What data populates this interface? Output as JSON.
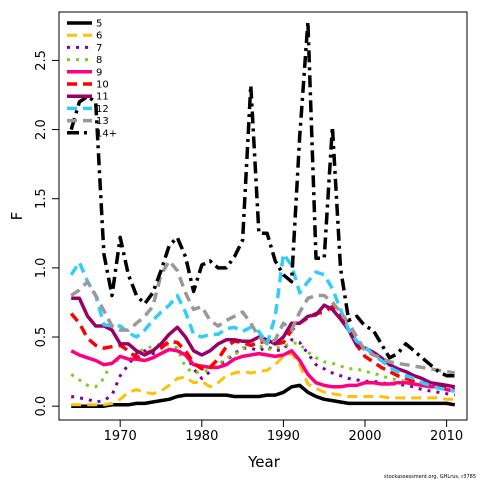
{
  "chart_data": {
    "type": "line",
    "title": "",
    "xlabel": "Year",
    "ylabel": "F",
    "xlim": [
      1962.5,
      2012.5
    ],
    "ylim": [
      -0.1,
      2.85
    ],
    "x_ticks": [
      1970,
      1980,
      1990,
      2000,
      2010
    ],
    "x_tick_labels": [
      "1970",
      "1980",
      "1990",
      "2000",
      "2010"
    ],
    "y_ticks": [
      0.0,
      0.5,
      1.0,
      1.5,
      2.0,
      2.5
    ],
    "y_tick_labels": [
      "0.0",
      "0.5",
      "1.0",
      "1.5",
      "2.0",
      "2.5"
    ],
    "grid": false,
    "legend_position": "top-left",
    "footer": "stockassessment.org, GHLrus, r3785",
    "x": [
      1964,
      1965,
      1966,
      1967,
      1968,
      1969,
      1970,
      1971,
      1972,
      1973,
      1974,
      1975,
      1976,
      1977,
      1978,
      1979,
      1980,
      1981,
      1982,
      1983,
      1984,
      1985,
      1986,
      1987,
      1988,
      1989,
      1990,
      1991,
      1992,
      1993,
      1994,
      1995,
      1996,
      1997,
      1998,
      1999,
      2000,
      2001,
      2002,
      2003,
      2004,
      2005,
      2006,
      2007,
      2008,
      2009,
      2010,
      2011
    ],
    "series": [
      {
        "name": "5",
        "color": "#000000",
        "dash": "solid",
        "width": 3.5,
        "values": [
          0.0,
          0.0,
          0.0,
          0.0,
          0.0,
          0.01,
          0.01,
          0.01,
          0.02,
          0.02,
          0.03,
          0.04,
          0.05,
          0.07,
          0.08,
          0.08,
          0.08,
          0.08,
          0.08,
          0.08,
          0.07,
          0.07,
          0.07,
          0.07,
          0.08,
          0.08,
          0.1,
          0.14,
          0.15,
          0.1,
          0.07,
          0.05,
          0.04,
          0.03,
          0.02,
          0.02,
          0.02,
          0.02,
          0.02,
          0.02,
          0.02,
          0.02,
          0.02,
          0.02,
          0.02,
          0.02,
          0.02,
          0.01
        ]
      },
      {
        "name": "6",
        "color": "#ffc107",
        "dash": "dash",
        "width": 3,
        "values": [
          0.01,
          0.01,
          0.01,
          0.01,
          0.01,
          0.02,
          0.05,
          0.1,
          0.12,
          0.1,
          0.09,
          0.11,
          0.15,
          0.2,
          0.21,
          0.17,
          0.18,
          0.14,
          0.17,
          0.22,
          0.24,
          0.25,
          0.24,
          0.25,
          0.26,
          0.3,
          0.36,
          0.38,
          0.3,
          0.16,
          0.13,
          0.1,
          0.09,
          0.08,
          0.07,
          0.07,
          0.07,
          0.07,
          0.07,
          0.06,
          0.06,
          0.06,
          0.06,
          0.06,
          0.06,
          0.06,
          0.05,
          0.05
        ]
      },
      {
        "name": "7",
        "color": "#7b00a8",
        "dash": "dot",
        "width": 3,
        "values": [
          0.07,
          0.06,
          0.05,
          0.03,
          0.04,
          0.08,
          0.22,
          0.3,
          0.38,
          0.4,
          0.38,
          0.38,
          0.41,
          0.4,
          0.38,
          0.27,
          0.2,
          0.25,
          0.3,
          0.33,
          0.38,
          0.42,
          0.42,
          0.4,
          0.43,
          0.4,
          0.41,
          0.48,
          0.46,
          0.38,
          0.3,
          0.27,
          0.24,
          0.22,
          0.2,
          0.19,
          0.18,
          0.18,
          0.17,
          0.16,
          0.16,
          0.15,
          0.14,
          0.12,
          0.11,
          0.1,
          0.09,
          0.08
        ]
      },
      {
        "name": "8",
        "color": "#7ccd1e",
        "dash": "dot",
        "width": 3,
        "values": [
          0.23,
          0.19,
          0.15,
          0.14,
          0.2,
          0.33,
          0.33,
          0.36,
          0.38,
          0.42,
          0.43,
          0.45,
          0.44,
          0.42,
          0.28,
          0.24,
          0.25,
          0.26,
          0.3,
          0.35,
          0.37,
          0.42,
          0.44,
          0.44,
          0.41,
          0.42,
          0.43,
          0.46,
          0.45,
          0.39,
          0.35,
          0.32,
          0.31,
          0.29,
          0.27,
          0.27,
          0.25,
          0.24,
          0.22,
          0.2,
          0.19,
          0.18,
          0.16,
          0.15,
          0.14,
          0.13,
          0.12,
          0.11
        ]
      },
      {
        "name": "9",
        "color": "#ff0080",
        "dash": "solid",
        "width": 3.5,
        "values": [
          0.4,
          0.37,
          0.35,
          0.33,
          0.3,
          0.31,
          0.36,
          0.34,
          0.34,
          0.33,
          0.35,
          0.38,
          0.41,
          0.4,
          0.37,
          0.3,
          0.29,
          0.28,
          0.28,
          0.3,
          0.34,
          0.36,
          0.37,
          0.38,
          0.37,
          0.36,
          0.37,
          0.4,
          0.33,
          0.23,
          0.17,
          0.15,
          0.14,
          0.14,
          0.15,
          0.15,
          0.17,
          0.17,
          0.16,
          0.16,
          0.17,
          0.17,
          0.16,
          0.15,
          0.14,
          0.14,
          0.12,
          0.11
        ]
      },
      {
        "name": "10",
        "color": "#ff0000",
        "dash": "dash",
        "width": 3.5,
        "values": [
          0.67,
          0.6,
          0.49,
          0.44,
          0.42,
          0.43,
          0.44,
          0.4,
          0.35,
          0.38,
          0.4,
          0.42,
          0.47,
          0.46,
          0.4,
          0.31,
          0.27,
          0.28,
          0.34,
          0.43,
          0.47,
          0.46,
          0.44,
          0.46,
          0.47,
          0.45,
          0.46,
          0.55,
          0.6,
          0.64,
          0.67,
          0.68,
          0.72,
          0.66,
          0.55,
          0.44,
          0.36,
          0.32,
          0.28,
          0.25,
          0.22,
          0.2,
          0.18,
          0.17,
          0.16,
          0.15,
          0.13,
          0.12
        ]
      },
      {
        "name": "11",
        "color": "#990066",
        "dash": "solid",
        "width": 3.5,
        "values": [
          0.78,
          0.78,
          0.65,
          0.58,
          0.58,
          0.55,
          0.45,
          0.45,
          0.4,
          0.37,
          0.4,
          0.45,
          0.52,
          0.57,
          0.5,
          0.4,
          0.37,
          0.4,
          0.45,
          0.48,
          0.48,
          0.47,
          0.47,
          0.5,
          0.48,
          0.45,
          0.5,
          0.6,
          0.6,
          0.65,
          0.66,
          0.73,
          0.7,
          0.63,
          0.55,
          0.44,
          0.42,
          0.39,
          0.35,
          0.3,
          0.27,
          0.25,
          0.22,
          0.2,
          0.17,
          0.16,
          0.15,
          0.14
        ]
      },
      {
        "name": "12",
        "color": "#33ccff",
        "dash": "dash",
        "width": 3.5,
        "values": [
          0.95,
          1.04,
          0.9,
          0.8,
          0.59,
          0.58,
          0.58,
          0.53,
          0.5,
          0.55,
          0.62,
          0.68,
          0.73,
          0.8,
          0.68,
          0.52,
          0.5,
          0.52,
          0.52,
          0.56,
          0.57,
          0.54,
          0.57,
          0.54,
          0.45,
          0.65,
          1.1,
          1.02,
          0.82,
          0.9,
          0.97,
          0.95,
          0.85,
          0.7,
          0.55,
          0.47,
          0.43,
          0.37,
          0.33,
          0.28,
          0.25,
          0.22,
          0.2,
          0.17,
          0.15,
          0.13,
          0.12,
          0.11
        ]
      },
      {
        "name": "13",
        "color": "#999999",
        "dash": "dash",
        "width": 3.5,
        "values": [
          0.8,
          0.84,
          0.9,
          0.8,
          0.69,
          0.58,
          0.55,
          0.55,
          0.6,
          0.65,
          0.72,
          0.95,
          1.05,
          0.98,
          0.82,
          0.7,
          0.72,
          0.62,
          0.58,
          0.62,
          0.65,
          0.68,
          0.6,
          0.5,
          0.45,
          0.48,
          0.6,
          0.55,
          0.68,
          0.78,
          0.8,
          0.8,
          0.75,
          0.68,
          0.6,
          0.5,
          0.4,
          0.37,
          0.35,
          0.32,
          0.31,
          0.3,
          0.29,
          0.28,
          0.27,
          0.26,
          0.25,
          0.24
        ]
      },
      {
        "name": "14+",
        "color": "#000000",
        "dash": "dashdot",
        "width": 3.5,
        "values": [
          2.0,
          2.2,
          2.24,
          2.2,
          1.1,
          0.8,
          1.22,
          0.95,
          0.8,
          0.74,
          0.82,
          0.98,
          1.16,
          1.22,
          1.08,
          0.83,
          1.02,
          1.05,
          1.0,
          1.0,
          1.08,
          1.2,
          2.32,
          1.25,
          1.25,
          1.05,
          0.95,
          0.9,
          1.95,
          2.78,
          1.07,
          1.07,
          2.02,
          1.0,
          0.62,
          0.65,
          0.58,
          0.55,
          0.45,
          0.35,
          0.38,
          0.45,
          0.4,
          0.35,
          0.3,
          0.25,
          0.22,
          0.22
        ]
      }
    ]
  }
}
